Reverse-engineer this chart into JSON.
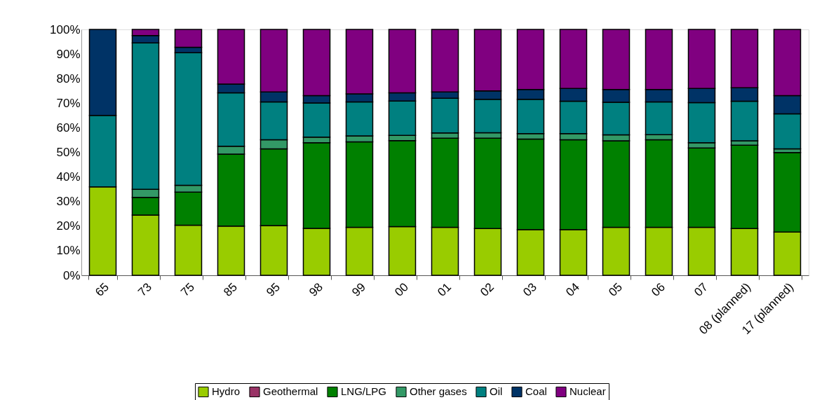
{
  "chart_data": {
    "type": "bar",
    "stacked": true,
    "categories": [
      "65",
      "73",
      "75",
      "85",
      "95",
      "98",
      "99",
      "00",
      "01",
      "02",
      "03",
      "04",
      "05",
      "06",
      "07",
      "08 (planned)",
      "17 (planned)"
    ],
    "series": [
      {
        "name": "Hydro",
        "color": "#99cc00",
        "values": [
          36,
          24.5,
          20.4,
          20,
          20.2,
          19.1,
          19.5,
          19.8,
          19.5,
          19.0,
          18.6,
          18.6,
          19.5,
          19.5,
          19.5,
          19.0,
          17.6
        ]
      },
      {
        "name": "Geothermal",
        "color": "#993366",
        "values": [
          0,
          0,
          0,
          0,
          0,
          0,
          0,
          0,
          0,
          0,
          0,
          0,
          0,
          0,
          0,
          0,
          0
        ]
      },
      {
        "name": "LNG/LPG",
        "color": "#008000",
        "values": [
          0,
          7.2,
          13.4,
          29.3,
          31.2,
          34.8,
          34.8,
          35.0,
          36.3,
          36.8,
          36.8,
          36.5,
          35.2,
          35.6,
          32.3,
          33.9,
          32.3
        ]
      },
      {
        "name": "Other gases",
        "color": "#339966",
        "values": [
          0,
          3.3,
          2.8,
          3.2,
          3.7,
          2.3,
          2.4,
          2.1,
          2.1,
          2.2,
          2.2,
          2.5,
          2.4,
          2.1,
          2.1,
          1.8,
          1.5
        ]
      },
      {
        "name": "Oil",
        "color": "#008080",
        "values": [
          29,
          59.5,
          53.9,
          21.7,
          15.4,
          13.9,
          13.8,
          14.0,
          14.1,
          13.6,
          14.0,
          13.2,
          13.3,
          13.3,
          16.3,
          16.1,
          14.3
        ]
      },
      {
        "name": "Coal",
        "color": "#003366",
        "values": [
          35,
          3,
          2.2,
          3.6,
          4.1,
          3.0,
          3.3,
          3.3,
          2.6,
          3.4,
          4.0,
          5.2,
          5.2,
          5.1,
          5.8,
          5.5,
          7.4
        ]
      },
      {
        "name": "Nuclear",
        "color": "#800080",
        "values": [
          0,
          2.5,
          7.3,
          22.2,
          25.4,
          26.9,
          26.2,
          25.8,
          25.4,
          25.0,
          24.4,
          24.0,
          24.4,
          24.4,
          24.0,
          23.7,
          26.9
        ]
      }
    ],
    "ylim": [
      0,
      100
    ],
    "yticks": [
      {
        "value": 0,
        "label": "0%"
      },
      {
        "value": 10,
        "label": "10%"
      },
      {
        "value": 20,
        "label": "20%"
      },
      {
        "value": 30,
        "label": "30%"
      },
      {
        "value": 40,
        "label": "40%"
      },
      {
        "value": 50,
        "label": "50%"
      },
      {
        "value": 60,
        "label": "60%"
      },
      {
        "value": 70,
        "label": "70%"
      },
      {
        "value": 80,
        "label": "80%"
      },
      {
        "value": 90,
        "label": "90%"
      },
      {
        "value": 100,
        "label": "100%"
      }
    ],
    "grid": false,
    "legend": "bottom"
  }
}
